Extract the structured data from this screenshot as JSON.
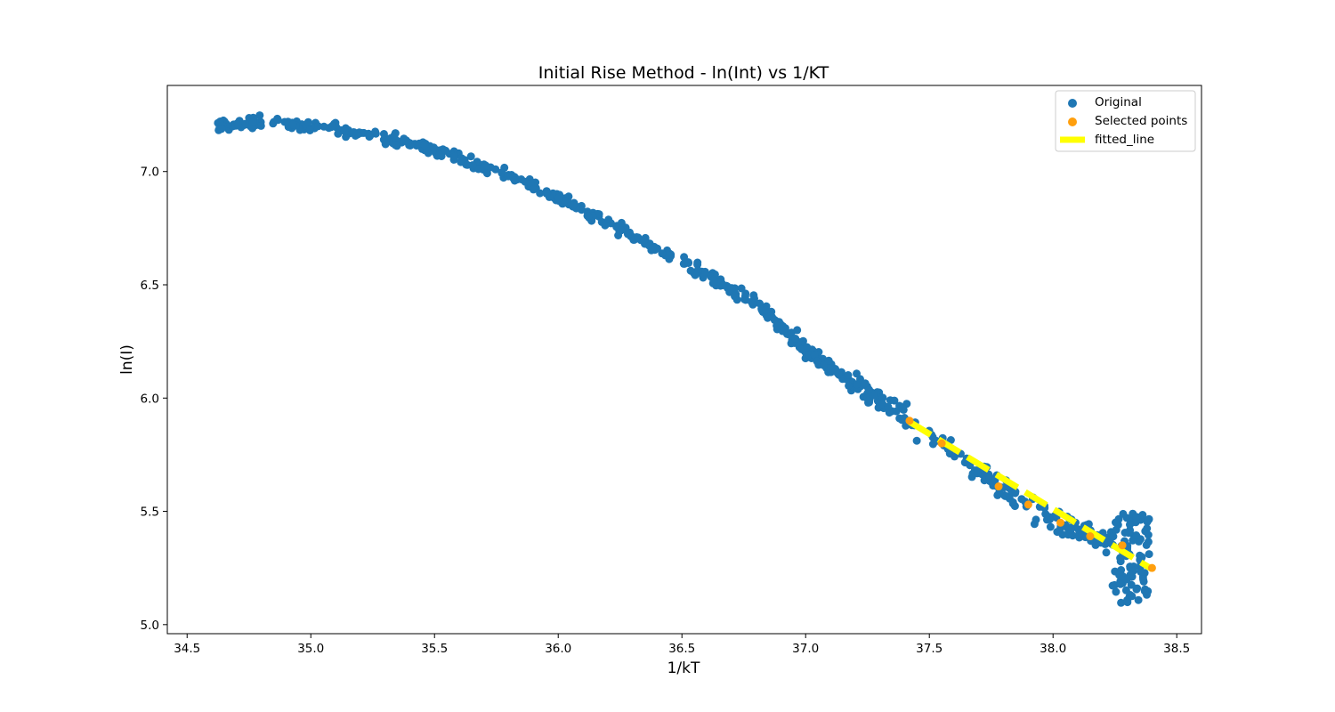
{
  "chart_data": {
    "type": "scatter",
    "title": "Initial Rise Method - ln(Int) vs 1/KT",
    "xlabel": "1/kT",
    "ylabel": "ln(I)",
    "xlim": [
      34.42,
      38.6
    ],
    "ylim": [
      4.96,
      7.38
    ],
    "x_ticks": [
      "34.5",
      "35.0",
      "35.5",
      "36.0",
      "36.5",
      "37.0",
      "37.5",
      "38.0",
      "38.5"
    ],
    "y_ticks": [
      "5.0",
      "5.5",
      "6.0",
      "6.5",
      "7.0"
    ],
    "grid": false,
    "legend_position": "top-right",
    "series": [
      {
        "name": "Original",
        "kind": "scatter",
        "color": "#1f77b4",
        "trend_points": [
          [
            34.62,
            7.21
          ],
          [
            34.8,
            7.22
          ],
          [
            35.0,
            7.2
          ],
          [
            35.2,
            7.17
          ],
          [
            35.4,
            7.13
          ],
          [
            35.6,
            7.06
          ],
          [
            35.8,
            6.98
          ],
          [
            36.0,
            6.88
          ],
          [
            36.2,
            6.78
          ],
          [
            36.4,
            6.66
          ],
          [
            36.6,
            6.54
          ],
          [
            36.8,
            6.42
          ],
          [
            37.0,
            6.22
          ],
          [
            37.2,
            6.06
          ],
          [
            37.4,
            5.92
          ],
          [
            37.6,
            5.76
          ],
          [
            37.8,
            5.6
          ],
          [
            38.0,
            5.46
          ],
          [
            38.2,
            5.38
          ],
          [
            38.3,
            5.32
          ],
          [
            38.38,
            5.25
          ]
        ],
        "n_points": 700
      },
      {
        "name": "Selected points",
        "kind": "scatter",
        "color": "#ff9f0e",
        "points": [
          [
            37.42,
            5.9
          ],
          [
            37.55,
            5.8
          ],
          [
            37.78,
            5.61
          ],
          [
            37.9,
            5.53
          ],
          [
            38.03,
            5.45
          ],
          [
            38.15,
            5.39
          ],
          [
            38.28,
            5.35
          ],
          [
            38.4,
            5.25
          ]
        ]
      },
      {
        "name": "fitted_line",
        "kind": "line",
        "color": "#ffff00",
        "style": "dashed",
        "points": [
          [
            37.42,
            5.895
          ],
          [
            38.4,
            5.245
          ]
        ]
      }
    ]
  }
}
